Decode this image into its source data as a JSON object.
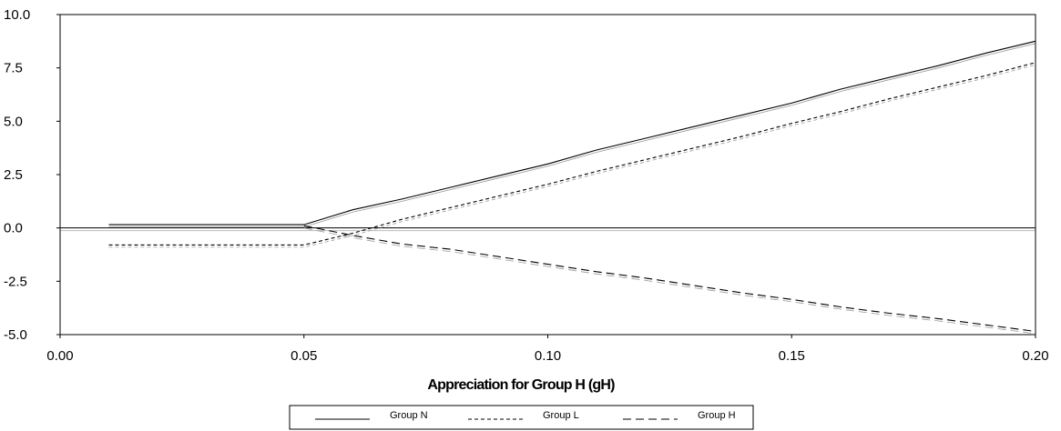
{
  "chart_data": {
    "type": "line",
    "title": "",
    "xlabel": "Appreciation for Group H (gH)",
    "ylabel": "",
    "xlim": [
      0.0,
      0.2
    ],
    "ylim": [
      -5.0,
      10.0
    ],
    "x_ticks": [
      0.0,
      0.05,
      0.1,
      0.15,
      0.2
    ],
    "x_tick_labels": [
      "0.00",
      "0.05",
      "0.10",
      "0.15",
      "0.20"
    ],
    "y_ticks": [
      10.0,
      7.5,
      5.0,
      2.5,
      0.0,
      -2.5,
      -5.0
    ],
    "y_tick_labels": [
      "10.0",
      "7.5",
      "5.0",
      "2.5",
      "0.0",
      "-2.5",
      "-5.0"
    ],
    "grid": false,
    "zero_line": true,
    "legend_position": "bottom-center",
    "series": [
      {
        "name": "Group N",
        "line_style": "solid",
        "color": "#000000",
        "x": [
          0.01,
          0.02,
          0.03,
          0.04,
          0.05,
          0.06,
          0.07,
          0.08,
          0.09,
          0.1,
          0.11,
          0.12,
          0.13,
          0.14,
          0.15,
          0.16,
          0.17,
          0.18,
          0.19,
          0.2
        ],
        "y": [
          0.15,
          0.15,
          0.15,
          0.15,
          0.15,
          0.85,
          1.35,
          1.9,
          2.45,
          3.0,
          3.65,
          4.2,
          4.75,
          5.3,
          5.85,
          6.5,
          7.05,
          7.6,
          8.2,
          8.75
        ]
      },
      {
        "name": "Group L",
        "line_style": "short-dash",
        "color": "#000000",
        "x": [
          0.01,
          0.02,
          0.03,
          0.04,
          0.05,
          0.06,
          0.07,
          0.08,
          0.09,
          0.1,
          0.11,
          0.12,
          0.13,
          0.14,
          0.15,
          0.16,
          0.17,
          0.18,
          0.19,
          0.2
        ],
        "y": [
          -0.8,
          -0.8,
          -0.8,
          -0.8,
          -0.8,
          -0.25,
          0.4,
          0.95,
          1.5,
          2.05,
          2.65,
          3.2,
          3.75,
          4.3,
          4.9,
          5.45,
          6.05,
          6.6,
          7.15,
          7.75
        ]
      },
      {
        "name": "Group H",
        "line_style": "long-dash",
        "color": "#000000",
        "x": [
          0.05,
          0.06,
          0.07,
          0.08,
          0.09,
          0.1,
          0.11,
          0.12,
          0.13,
          0.14,
          0.15,
          0.16,
          0.17,
          0.18,
          0.19,
          0.2
        ],
        "y": [
          0.1,
          -0.35,
          -0.75,
          -1.0,
          -1.35,
          -1.7,
          -2.05,
          -2.35,
          -2.7,
          -3.05,
          -3.35,
          -3.7,
          -4.0,
          -4.25,
          -4.55,
          -4.85
        ]
      }
    ]
  }
}
